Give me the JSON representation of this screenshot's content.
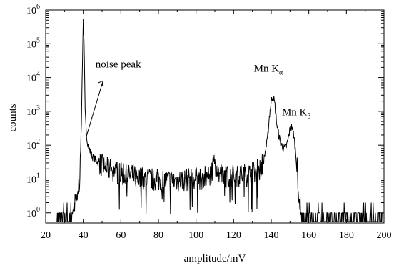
{
  "chart_data": {
    "type": "line",
    "title": "",
    "xlabel": "amplitude/mV",
    "ylabel": "counts",
    "xlim": [
      20,
      200
    ],
    "ylim": [
      0.5,
      1000000
    ],
    "yscale": "log",
    "grid": false,
    "x_ticks": [
      20,
      40,
      60,
      80,
      100,
      120,
      140,
      160,
      180,
      200
    ],
    "y_ticks": [
      {
        "base": "10",
        "exp": "0"
      },
      {
        "base": "10",
        "exp": "1"
      },
      {
        "base": "10",
        "exp": "2"
      },
      {
        "base": "10",
        "exp": "3"
      },
      {
        "base": "10",
        "exp": "4"
      },
      {
        "base": "10",
        "exp": "5"
      },
      {
        "base": "10",
        "exp": "6"
      }
    ],
    "series": [
      {
        "color": "#000000",
        "x": [
          26,
          28,
          30,
          32,
          34,
          36,
          37,
          38,
          38.5,
          39,
          39.5,
          40,
          40.5,
          41,
          41.5,
          42,
          43,
          44,
          45,
          47,
          50,
          55,
          60,
          65,
          70,
          75,
          80,
          85,
          90,
          95,
          100,
          105,
          108,
          110,
          111,
          112,
          114,
          118,
          122,
          126,
          130,
          134,
          136,
          138,
          139,
          140,
          141,
          142,
          143,
          144,
          145,
          146,
          147,
          148,
          149,
          150,
          151,
          152,
          153,
          154,
          155,
          156,
          160,
          170,
          180,
          190,
          199
        ],
        "y": [
          0.7,
          0.8,
          1,
          1,
          1.2,
          2,
          3,
          10,
          50,
          500,
          20000,
          550000,
          60000,
          900,
          300,
          150,
          80,
          60,
          45,
          35,
          25,
          18,
          14,
          12,
          11,
          10,
          9.5,
          9,
          9,
          9.5,
          10,
          11,
          15,
          35,
          22,
          14,
          12,
          12,
          12,
          13,
          15,
          20,
          35,
          150,
          700,
          2000,
          3000,
          1500,
          400,
          200,
          120,
          90,
          80,
          90,
          150,
          300,
          350,
          200,
          60,
          15,
          2,
          1,
          1,
          0.8,
          0.8,
          0.7,
          0.7
        ]
      }
    ],
    "annotations": [
      {
        "text": "noise peak",
        "x": 40.5,
        "y": 200
      },
      {
        "text": "Mn K",
        "sub": "α",
        "x": 141,
        "y": 3000
      },
      {
        "text": "Mn K",
        "sub": "β",
        "x": 151,
        "y": 350
      }
    ]
  }
}
